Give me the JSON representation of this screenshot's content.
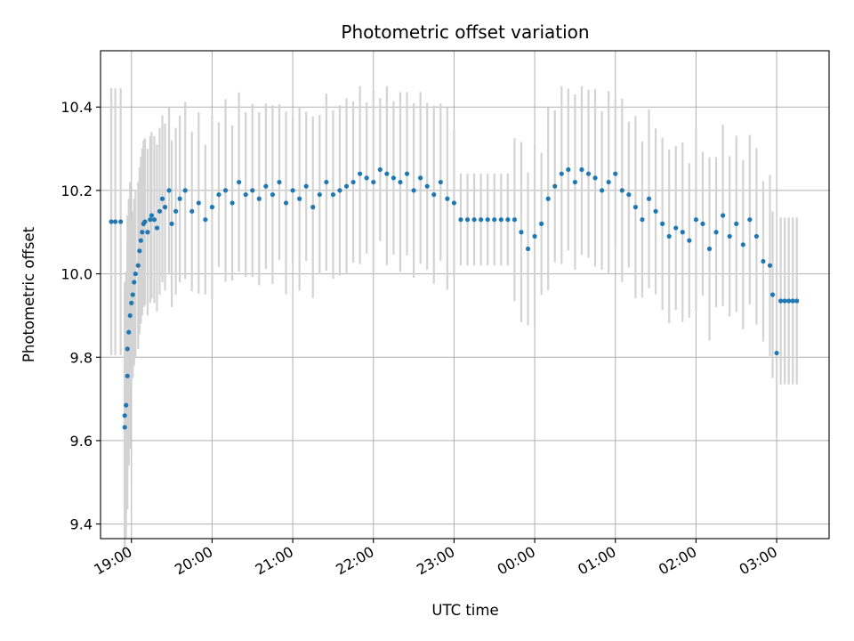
{
  "chart_data": {
    "type": "scatter",
    "title": "Photometric offset variation",
    "xlabel": "UTC time",
    "ylabel": "Photometric offset",
    "xlim": [
      "18:37",
      "03:39"
    ],
    "ylim": [
      9.365,
      10.535
    ],
    "x_tick_labels": [
      "19:00",
      "20:00",
      "21:00",
      "22:00",
      "23:00",
      "00:00",
      "01:00",
      "02:00",
      "03:00"
    ],
    "y_tick_labels": [
      "9.4",
      "9.6",
      "9.8",
      "10.0",
      "10.2",
      "10.4"
    ],
    "y_ticks": [
      9.4,
      9.6,
      9.8,
      10.0,
      10.2,
      10.4
    ],
    "grid": true,
    "marker_color": "#1f77b4",
    "errorbar_color": "#d3d3d3",
    "series": [
      {
        "x": [
          "18:45",
          "18:48",
          "18:52",
          "18:55",
          "18:55",
          "18:56",
          "18:57",
          "18:57",
          "18:58",
          "18:59",
          "19:00",
          "19:01",
          "19:02",
          "19:03",
          "19:05",
          "19:06",
          "19:07",
          "19:08",
          "19:09",
          "19:10",
          "19:12",
          "19:14",
          "19:15",
          "19:17",
          "19:19",
          "19:21",
          "19:23",
          "19:25",
          "19:28",
          "19:30",
          "19:33",
          "19:36",
          "19:40",
          "19:45",
          "19:50",
          "19:55",
          "20:00",
          "20:05",
          "20:10",
          "20:15",
          "20:20",
          "20:25",
          "20:30",
          "20:35",
          "20:40",
          "20:45",
          "20:50",
          "20:55",
          "21:00",
          "21:05",
          "21:10",
          "21:15",
          "21:20",
          "21:25",
          "21:30",
          "21:35",
          "21:40",
          "21:45",
          "21:50",
          "21:55",
          "22:00",
          "22:05",
          "22:10",
          "22:15",
          "22:20",
          "22:25",
          "22:30",
          "22:35",
          "22:40",
          "22:45",
          "22:50",
          "22:55",
          "23:00",
          "23:05",
          "23:10",
          "23:15",
          "23:20",
          "23:25",
          "23:30",
          "23:35",
          "23:40",
          "23:45",
          "23:50",
          "23:55",
          "00:00",
          "00:05",
          "00:10",
          "00:15",
          "00:20",
          "00:25",
          "00:30",
          "00:35",
          "00:40",
          "00:45",
          "00:50",
          "00:55",
          "01:00",
          "01:05",
          "01:10",
          "01:15",
          "01:20",
          "01:25",
          "01:30",
          "01:35",
          "01:40",
          "01:45",
          "01:50",
          "01:55",
          "02:00",
          "02:05",
          "02:10",
          "02:15",
          "02:20",
          "02:25",
          "02:30",
          "02:35",
          "02:40",
          "02:45",
          "02:50",
          "02:55",
          "02:57",
          "03:00",
          "03:03",
          "03:06",
          "03:09",
          "03:12",
          "03:15"
        ],
        "y": [
          10.125,
          10.125,
          10.125,
          9.632,
          9.66,
          9.685,
          9.755,
          9.82,
          9.86,
          9.9,
          9.93,
          9.95,
          9.98,
          10.0,
          10.02,
          10.055,
          10.08,
          10.1,
          10.12,
          10.125,
          10.1,
          10.13,
          10.14,
          10.13,
          10.11,
          10.15,
          10.18,
          10.16,
          10.2,
          10.12,
          10.15,
          10.18,
          10.2,
          10.15,
          10.17,
          10.13,
          10.16,
          10.19,
          10.2,
          10.17,
          10.22,
          10.19,
          10.2,
          10.18,
          10.21,
          10.19,
          10.22,
          10.17,
          10.2,
          10.18,
          10.21,
          10.16,
          10.19,
          10.22,
          10.19,
          10.2,
          10.21,
          10.22,
          10.24,
          10.23,
          10.22,
          10.25,
          10.24,
          10.23,
          10.22,
          10.24,
          10.2,
          10.23,
          10.21,
          10.19,
          10.22,
          10.18,
          10.17,
          10.13,
          10.13,
          10.13,
          10.13,
          10.13,
          10.13,
          10.13,
          10.13,
          10.13,
          10.1,
          10.06,
          10.09,
          10.12,
          10.18,
          10.21,
          10.24,
          10.25,
          10.22,
          10.25,
          10.24,
          10.23,
          10.2,
          10.22,
          10.24,
          10.2,
          10.19,
          10.16,
          10.13,
          10.18,
          10.15,
          10.12,
          10.09,
          10.11,
          10.1,
          10.08,
          10.13,
          10.12,
          10.06,
          10.1,
          10.14,
          10.09,
          10.12,
          10.07,
          10.13,
          10.09,
          10.03,
          10.02,
          9.95,
          9.81,
          9.935,
          9.935,
          9.935,
          9.935,
          9.935
        ]
      }
    ]
  }
}
